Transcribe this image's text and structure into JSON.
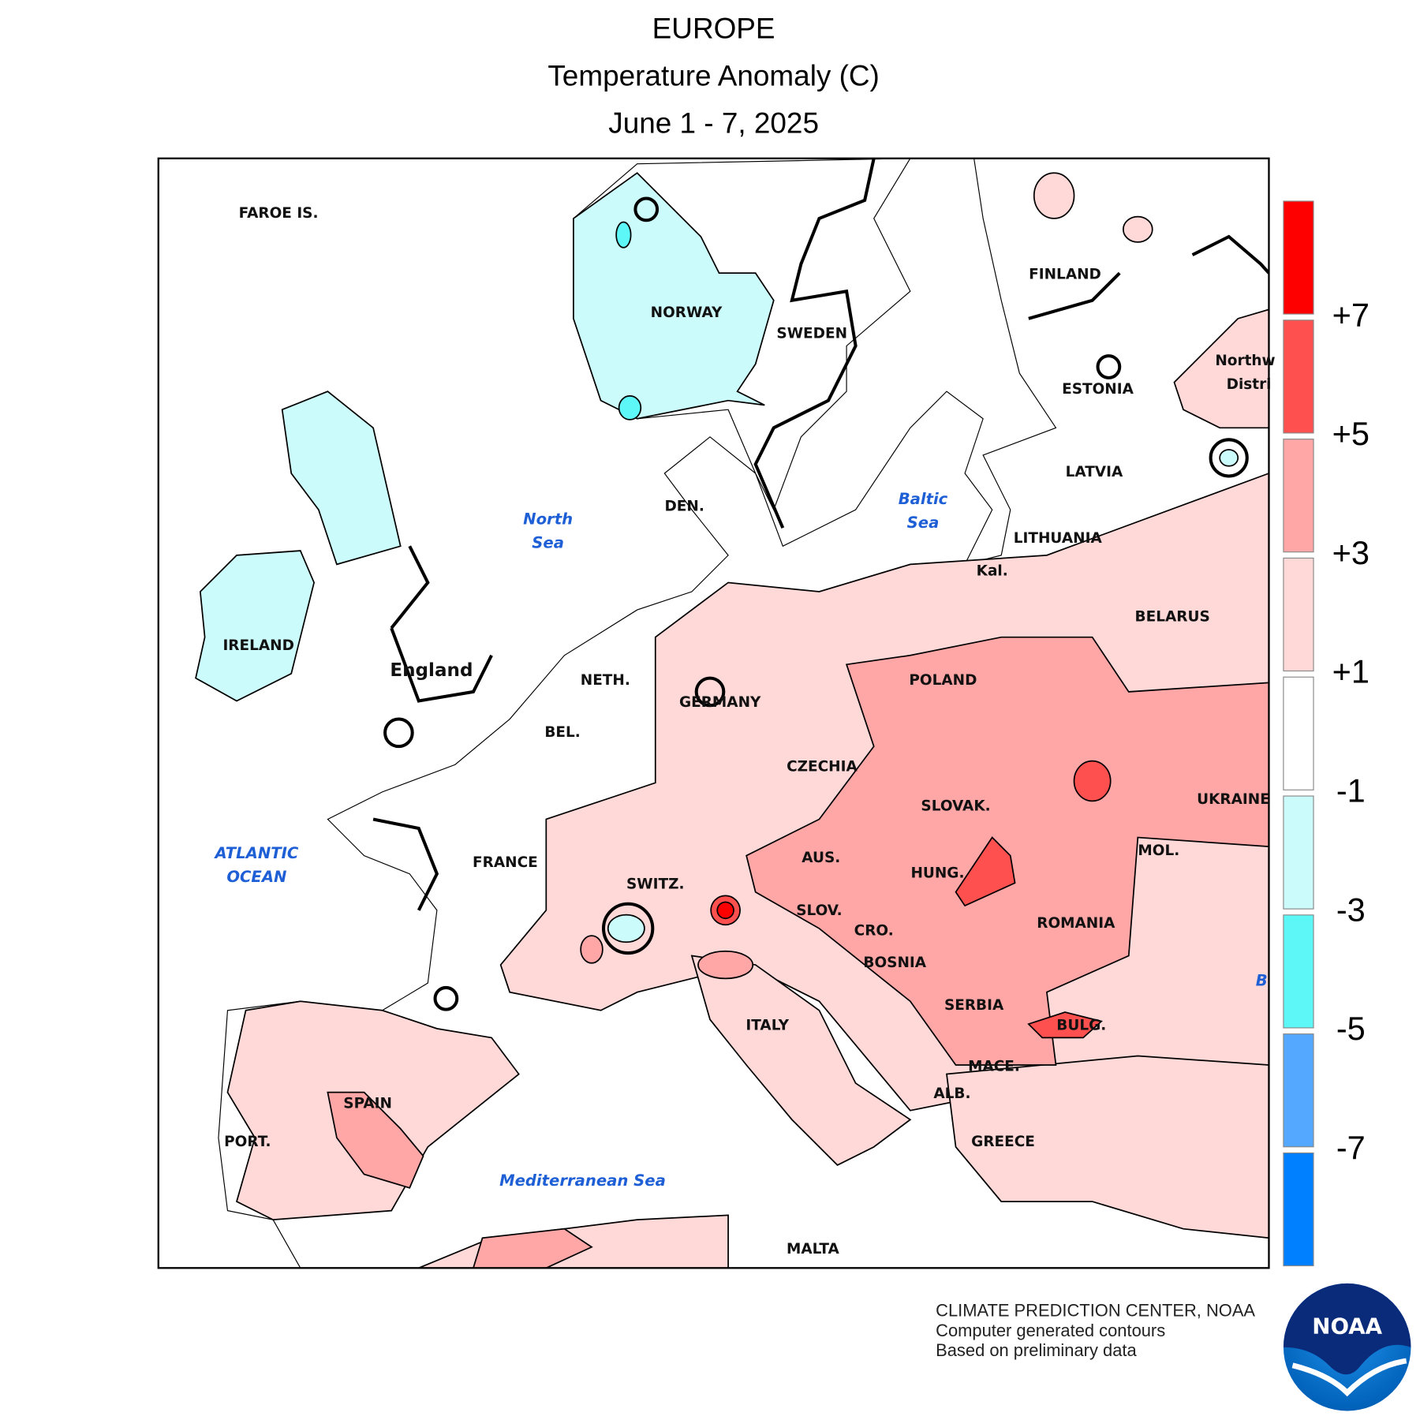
{
  "header": {
    "title": "EUROPE",
    "subtitle": "Temperature Anomaly (C)",
    "period": "June 1 - 7, 2025"
  },
  "map": {
    "labels": [
      "FAROE IS.",
      "NORWAY",
      "SWEDEN",
      "FINLAND",
      "ESTONIA",
      "LATVIA",
      "LITHUANIA",
      "Kal.",
      "BELARUS",
      "IRELAND",
      "England",
      "NETH.",
      "GERMANY",
      "POLAND",
      "BEL.",
      "CZECHIA",
      "SLOVAK.",
      "UKRAINE",
      "FRANCE",
      "AUS.",
      "MOL.",
      "HUNG.",
      "SWITZ.",
      "SLOV.",
      "ROMANIA",
      "CRO.",
      "BOSNIA",
      "SERBIA",
      "ITALY",
      "BULG.",
      "MACE.",
      "SPAIN",
      "ALB.",
      "GREECE",
      "PORT.",
      "MALTA",
      "DEN.",
      "Northw",
      "Distri"
    ],
    "seas": [
      "North",
      "Sea",
      "Baltic",
      "Sea",
      "ATLANTIC",
      "OCEAN",
      "Mediterranean Sea",
      "B"
    ]
  },
  "colorbar": {
    "colors": [
      "#ff0000",
      "#ff5050",
      "#ffa6a6",
      "#ffd8d8",
      "#ffffff",
      "#ccfbfb",
      "#5ef7f7",
      "#55a8ff",
      "#0080ff"
    ],
    "ticks": [
      "+7",
      "+5",
      "+3",
      "+1",
      "-1",
      "-3",
      "-5",
      "-7"
    ]
  },
  "credits": [
    "CLIMATE PREDICTION CENTER, NOAA",
    "Computer generated contours",
    "Based on preliminary data"
  ],
  "logo": "NOAA"
}
